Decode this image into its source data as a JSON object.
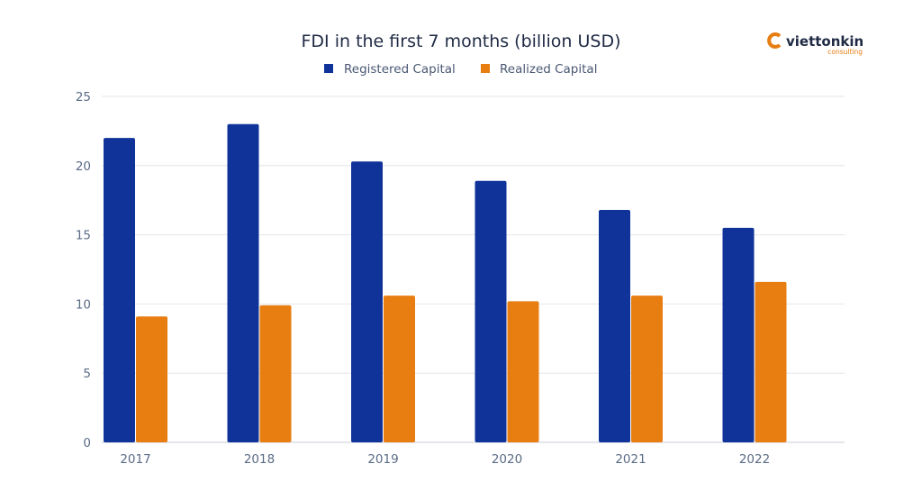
{
  "chart_data": {
    "type": "bar",
    "title": "FDI in the first 7 months (billion USD)",
    "categories": [
      "2017",
      "2018",
      "2019",
      "2020",
      "2021",
      "2022"
    ],
    "series": [
      {
        "name": "Registered Capital",
        "color": "#0f3399",
        "values": [
          22.0,
          23.0,
          20.3,
          18.9,
          16.8,
          15.5
        ]
      },
      {
        "name": "Realized Capital",
        "color": "#e87d12",
        "values": [
          9.1,
          9.9,
          10.6,
          10.2,
          10.6,
          11.6
        ]
      }
    ],
    "ylim": [
      0,
      25
    ],
    "yticks": [
      "0",
      "5",
      "10",
      "15",
      "20",
      "25"
    ],
    "xlabel": "",
    "ylabel": "",
    "grid": true,
    "legend_position": "top-center"
  },
  "logo": {
    "name": "viettonkin",
    "subtitle": "consulting",
    "color": "#e87d12"
  }
}
